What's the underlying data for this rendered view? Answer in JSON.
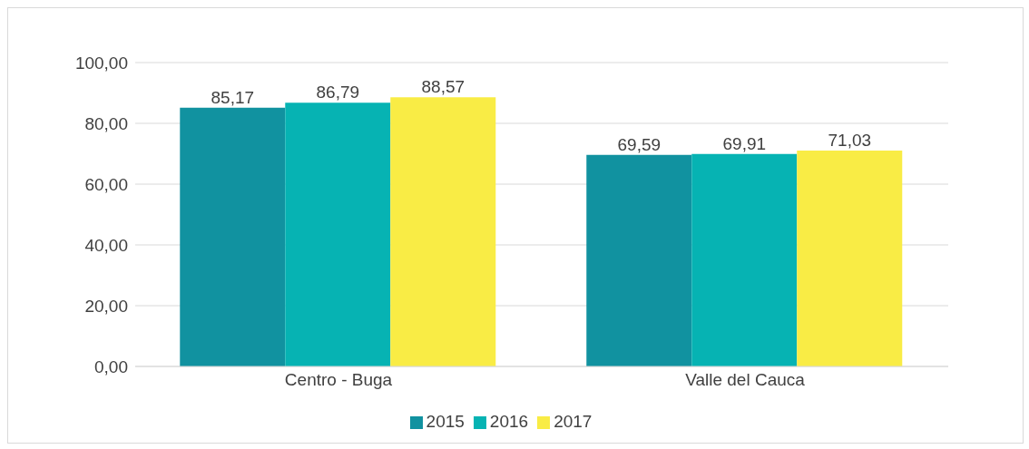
{
  "chart_data": {
    "type": "bar",
    "categories": [
      "Centro - Buga",
      "Valle del Cauca"
    ],
    "series": [
      {
        "name": "2015",
        "color": "#1192a0",
        "values": [
          85.17,
          69.59
        ],
        "value_labels": [
          "85,17",
          "69,59"
        ]
      },
      {
        "name": "2016",
        "color": "#06b3b3",
        "values": [
          86.79,
          69.91
        ],
        "value_labels": [
          "86,79",
          "69,91"
        ]
      },
      {
        "name": "2017",
        "color": "#f9ec45",
        "values": [
          88.57,
          71.03
        ],
        "value_labels": [
          "88,57",
          "71,03"
        ]
      }
    ],
    "ylim": [
      0,
      100
    ],
    "yticks": [
      {
        "value": 0,
        "label": "0,00"
      },
      {
        "value": 20,
        "label": "20,00"
      },
      {
        "value": 40,
        "label": "40,00"
      },
      {
        "value": 60,
        "label": "60,00"
      },
      {
        "value": 80,
        "label": "80,00"
      },
      {
        "value": 100,
        "label": "100,00"
      }
    ],
    "grid": "y",
    "legend": "bottom"
  }
}
